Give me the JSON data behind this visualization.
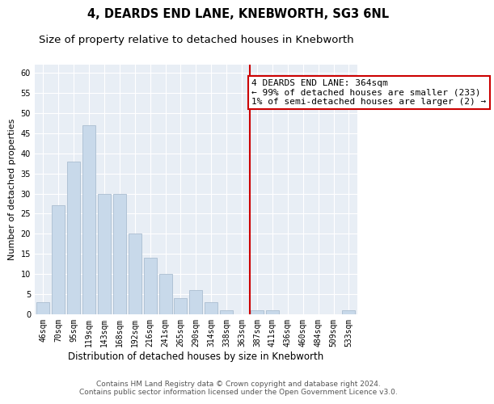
{
  "title": "4, DEARDS END LANE, KNEBWORTH, SG3 6NL",
  "subtitle": "Size of property relative to detached houses in Knebworth",
  "xlabel": "Distribution of detached houses by size in Knebworth",
  "ylabel": "Number of detached properties",
  "categories": [
    "46sqm",
    "70sqm",
    "95sqm",
    "119sqm",
    "143sqm",
    "168sqm",
    "192sqm",
    "216sqm",
    "241sqm",
    "265sqm",
    "290sqm",
    "314sqm",
    "338sqm",
    "363sqm",
    "387sqm",
    "411sqm",
    "436sqm",
    "460sqm",
    "484sqm",
    "509sqm",
    "533sqm"
  ],
  "values": [
    3,
    27,
    38,
    47,
    30,
    30,
    20,
    14,
    10,
    4,
    6,
    3,
    1,
    0,
    1,
    1,
    0,
    0,
    0,
    0,
    1
  ],
  "bar_color": "#c8d9ea",
  "bar_edge_color": "#aabdd0",
  "vline_x_index": 13,
  "vline_color": "#cc0000",
  "annotation_line1": "4 DEARDS END LANE: 364sqm",
  "annotation_line2": "← 99% of detached houses are smaller (233)",
  "annotation_line3": "1% of semi-detached houses are larger (2) →",
  "annotation_box_color": "#cc0000",
  "ylim": [
    0,
    62
  ],
  "yticks": [
    0,
    5,
    10,
    15,
    20,
    25,
    30,
    35,
    40,
    45,
    50,
    55,
    60
  ],
  "background_color": "#e8eef5",
  "footer_text": "Contains HM Land Registry data © Crown copyright and database right 2024.\nContains public sector information licensed under the Open Government Licence v3.0.",
  "title_fontsize": 10.5,
  "subtitle_fontsize": 9.5,
  "xlabel_fontsize": 8.5,
  "ylabel_fontsize": 8,
  "tick_fontsize": 7,
  "annotation_fontsize": 8,
  "footer_fontsize": 6.5
}
